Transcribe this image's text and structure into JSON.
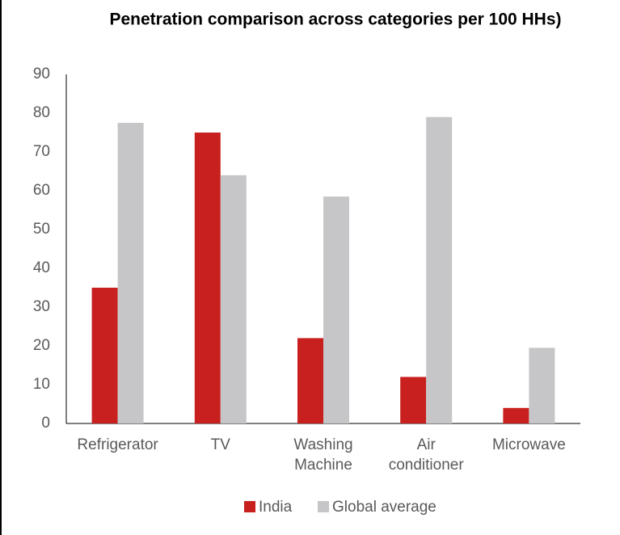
{
  "chart_data": {
    "type": "bar",
    "title": "Penetration comparison across categories per 100 HHs)",
    "categories": [
      "Refrigerator",
      "TV",
      "Washing Machine",
      "Air conditioner",
      "Microwave"
    ],
    "series": [
      {
        "name": "India",
        "color": "#c8201e",
        "values": [
          35,
          75,
          22,
          12,
          4
        ]
      },
      {
        "name": "Global average",
        "color": "#c6c6c8",
        "values": [
          77.5,
          64,
          58.5,
          79,
          19.5
        ]
      }
    ],
    "ylim": [
      0,
      90
    ],
    "yticks": [
      0,
      10,
      20,
      30,
      40,
      50,
      60,
      70,
      80,
      90
    ],
    "grid": false,
    "legend": "bottom"
  }
}
